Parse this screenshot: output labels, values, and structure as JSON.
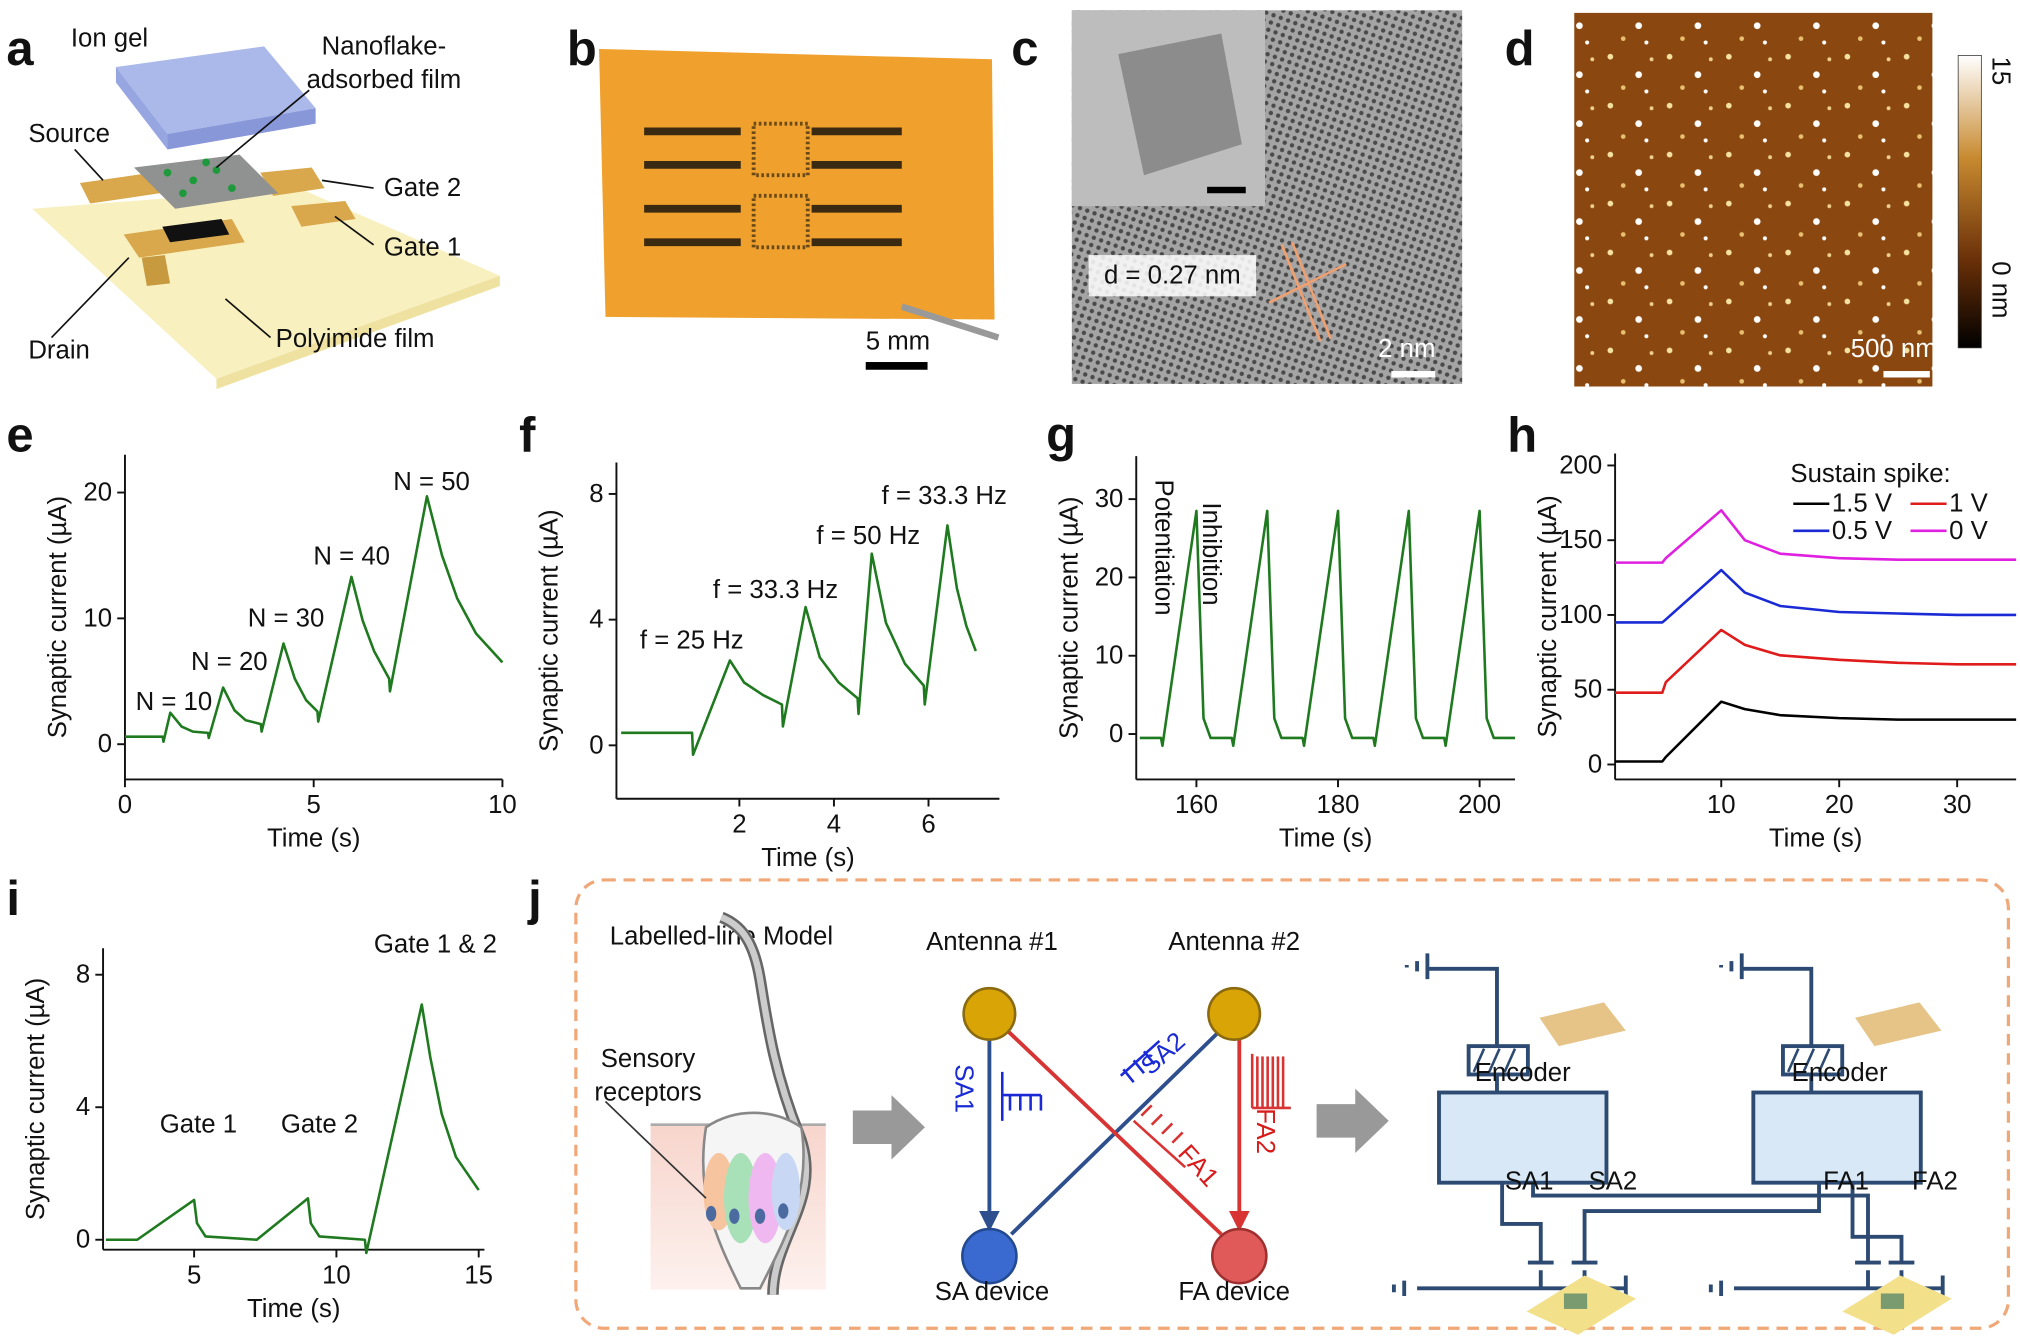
{
  "panel_labels": [
    "a",
    "b",
    "c",
    "d",
    "e",
    "f",
    "g",
    "h",
    "i",
    "j"
  ],
  "panel_a": {
    "ion_gel": "Ion gel",
    "film": [
      "Nanoflake-",
      "adsorbed film"
    ],
    "source": "Source",
    "gate2": "Gate 2",
    "gate1": "Gate 1",
    "drain": "Drain",
    "substrate": "Polyimide film"
  },
  "panel_b": {
    "scale_bar": "5 mm"
  },
  "panel_c": {
    "spacing": "d = 0.27 nm",
    "scale_bar": "2 nm"
  },
  "panel_d": {
    "scale_bar": "500 nm",
    "colorbar_max": "15",
    "colorbar_min": "0 nm"
  },
  "panel_j": {
    "model_title": "Labelled-line Model",
    "receptors": [
      "Sensory",
      "receptors"
    ],
    "antenna1": "Antenna #1",
    "antenna2": "Antenna #2",
    "sa1": "SA1",
    "sa2": "SA2",
    "fa1": "FA1",
    "fa2": "FA2",
    "sa_device": "SA device",
    "fa_device": "FA device",
    "encoder1": "Encoder",
    "encoder2": "Encoder",
    "out_sa1": "SA1",
    "out_sa2": "SA2",
    "out_fa1": "FA1",
    "out_fa2": "FA2"
  },
  "chart_data": [
    {
      "type": "line",
      "xlabel": "Time (s)",
      "ylabel": "Synaptic current (µA)",
      "xlim": [
        0,
        10
      ],
      "ylim": [
        -2.8,
        23
      ],
      "xticks": [
        0,
        5,
        10
      ],
      "yticks": [
        0,
        10,
        20
      ],
      "annotations": [
        "N = 10",
        "N = 20",
        "N = 30",
        "N = 40",
        "N = 50"
      ],
      "x": [
        0,
        1.0,
        1.02,
        1.2,
        1.5,
        1.8,
        2.2,
        2.22,
        2.6,
        2.9,
        3.2,
        3.6,
        3.62,
        4.2,
        4.5,
        4.8,
        5.1,
        5.12,
        6.0,
        6.3,
        6.6,
        7.0,
        7.02,
        8.0,
        8.4,
        8.8,
        9.3,
        10
      ],
      "series": [
        {
          "color": "#1f7a1f",
          "values": [
            0.6,
            0.6,
            0.2,
            2.5,
            1.4,
            1.0,
            0.9,
            0.5,
            4.5,
            2.7,
            1.9,
            1.6,
            1.0,
            8.0,
            5.2,
            3.5,
            2.6,
            1.8,
            13.3,
            9.8,
            7.4,
            5.2,
            4.2,
            19.7,
            15.0,
            11.6,
            8.8,
            6.5
          ]
        }
      ]
    },
    {
      "type": "line",
      "xlabel": "Time (s)",
      "ylabel": "Synaptic current (µA)",
      "xlim": [
        -0.6,
        7.5
      ],
      "ylim": [
        -1.7,
        9
      ],
      "xticks": [
        2,
        4,
        6
      ],
      "yticks": [
        0,
        4,
        8
      ],
      "annotations": [
        "f = 25 Hz",
        "f = 33.3 Hz",
        "f = 50 Hz",
        "f = 33.3 Hz"
      ],
      "x": [
        -0.5,
        1.0,
        1.02,
        1.8,
        2.1,
        2.5,
        2.9,
        2.92,
        3.4,
        3.7,
        4.1,
        4.5,
        4.52,
        4.8,
        5.1,
        5.5,
        5.9,
        5.92,
        6.4,
        6.6,
        6.8,
        7.0
      ],
      "series": [
        {
          "color": "#1f7a1f",
          "values": [
            0.4,
            0.4,
            -0.3,
            2.7,
            2.0,
            1.6,
            1.3,
            0.6,
            4.4,
            2.8,
            2.0,
            1.5,
            1.0,
            6.1,
            3.9,
            2.6,
            1.9,
            1.3,
            7.0,
            5.0,
            3.8,
            3.0
          ]
        }
      ]
    },
    {
      "type": "line",
      "xlabel": "Time (s)",
      "ylabel": "Synaptic current (µA)",
      "xlim": [
        151.5,
        205
      ],
      "ylim": [
        -5.8,
        35.5
      ],
      "xticks": [
        160,
        180,
        200
      ],
      "yticks": [
        0,
        10,
        20,
        30
      ],
      "annotations": [
        "Potentiation",
        "Inhibition"
      ],
      "x": [
        152,
        155,
        155.2,
        160,
        161,
        162,
        165,
        165.2,
        170,
        171,
        172,
        175,
        175.2,
        180,
        181,
        182,
        185,
        185.2,
        190,
        191,
        192,
        195,
        195.2,
        200,
        201,
        202,
        205
      ],
      "series": [
        {
          "color": "#1f7a1f",
          "values": [
            -0.5,
            -0.5,
            -1.5,
            28.5,
            2,
            -0.5,
            -0.5,
            -1.5,
            28.5,
            2,
            -0.5,
            -0.5,
            -1.5,
            28.5,
            2,
            -0.5,
            -0.5,
            -1.5,
            28.5,
            2,
            -0.5,
            -0.5,
            -1.5,
            28.5,
            2,
            -0.5,
            -0.5
          ]
        }
      ]
    },
    {
      "type": "line",
      "xlabel": "Time (s)",
      "ylabel": "Synaptic current (µA)",
      "xlim": [
        1,
        35
      ],
      "ylim": [
        -10,
        208
      ],
      "xticks": [
        10,
        20,
        30
      ],
      "yticks": [
        0,
        50,
        100,
        150,
        200
      ],
      "legend_title": "Sustain spike:",
      "x": [
        1,
        5,
        5.3,
        10,
        12,
        15,
        20,
        25,
        30,
        35
      ],
      "series": [
        {
          "name": "1.5 V",
          "color": "#000000",
          "values": [
            2,
            2,
            5,
            42,
            37,
            33,
            31,
            30,
            30,
            30
          ]
        },
        {
          "name": "1 V",
          "color": "#e01b1b",
          "values": [
            48,
            48,
            55,
            90,
            80,
            73,
            70,
            68,
            67,
            67
          ]
        },
        {
          "name": "0.5 V",
          "color": "#1a2bd6",
          "values": [
            95,
            95,
            97,
            130,
            115,
            106,
            102,
            101,
            100,
            100
          ]
        },
        {
          "name": "0 V",
          "color": "#e020e0",
          "values": [
            135,
            135,
            138,
            170,
            150,
            141,
            138,
            137,
            137,
            137
          ]
        }
      ]
    },
    {
      "type": "line",
      "xlabel": "Time (s)",
      "ylabel": "Synaptic current (µA)",
      "xlim": [
        1.8,
        15.2
      ],
      "ylim": [
        -0.3,
        8.8
      ],
      "xticks": [
        5,
        10,
        15
      ],
      "yticks": [
        0,
        4,
        8
      ],
      "annotations": [
        "Gate 1",
        "Gate 2",
        "Gate 1 & 2"
      ],
      "x": [
        1.9,
        3.0,
        5.0,
        5.1,
        5.4,
        7.2,
        9.0,
        9.1,
        9.4,
        11.0,
        11.05,
        13.0,
        13.3,
        13.7,
        14.2,
        15.0
      ],
      "series": [
        {
          "color": "#1f7a1f",
          "values": [
            0,
            0,
            1.2,
            0.5,
            0.1,
            0,
            1.25,
            0.5,
            0.1,
            0,
            -0.4,
            7.1,
            5.5,
            3.8,
            2.5,
            1.5
          ]
        }
      ]
    }
  ]
}
